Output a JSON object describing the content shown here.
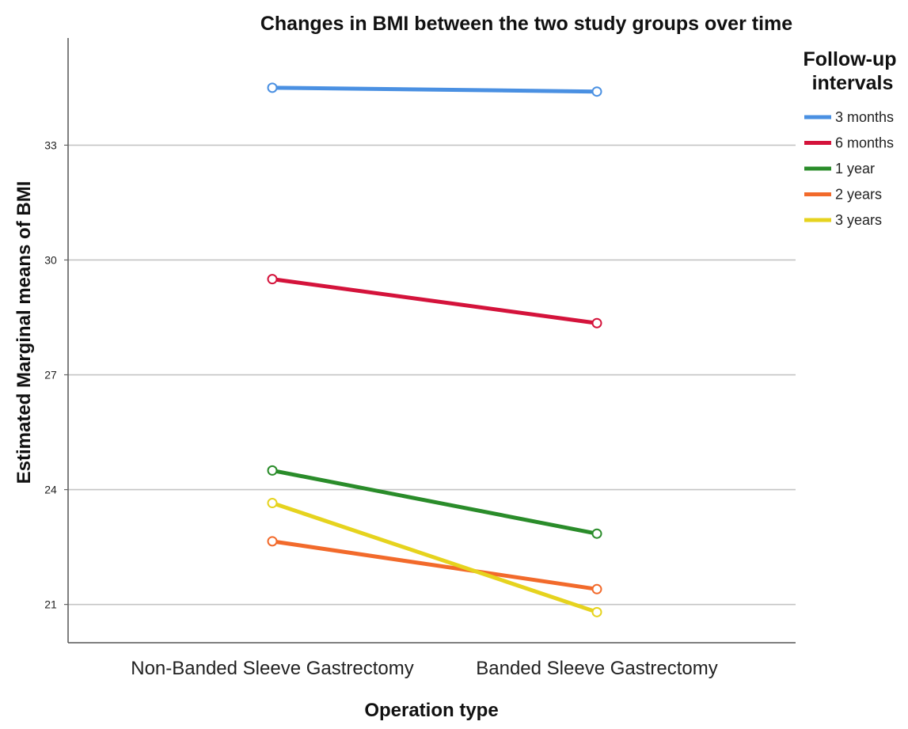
{
  "chart_data": {
    "type": "line",
    "title": "Changes in BMI between the two study groups over time",
    "xlabel": "Operation type",
    "ylabel": "Estimated Marginal means of BMI",
    "categories": [
      "Non-Banded Sleeve Gastrectomy",
      "Banded Sleeve Gastrectomy"
    ],
    "yticks": [
      21,
      24,
      27,
      30,
      33
    ],
    "ylim": [
      20.0,
      35.8
    ],
    "grid": "horizontal",
    "legend_title": "Follow-up intervals",
    "legend_title_lines": [
      "Follow-up",
      "intervals"
    ],
    "legend_position": "right",
    "series": [
      {
        "name": "3 months",
        "values": [
          34.5,
          34.4
        ],
        "color": "#4a90e2"
      },
      {
        "name": "6 months",
        "values": [
          29.5,
          28.35
        ],
        "color": "#d4133b"
      },
      {
        "name": "1 year",
        "values": [
          24.5,
          22.85
        ],
        "color": "#2a8c2a"
      },
      {
        "name": "2 years",
        "values": [
          22.65,
          21.4
        ],
        "color": "#f26a2b"
      },
      {
        "name": "3 years",
        "values": [
          23.65,
          20.8
        ],
        "color": "#e6d31e"
      }
    ]
  }
}
